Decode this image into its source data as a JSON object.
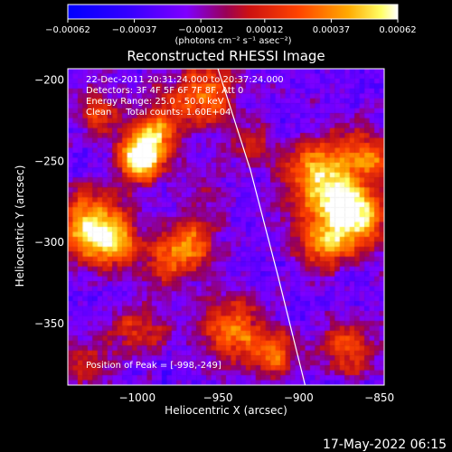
{
  "chart_data": {
    "type": "heatmap",
    "title": "Reconstructed RHESSI Image",
    "xlabel": "Heliocentric X (arcsec)",
    "ylabel": "Heliocentric Y (arcsec)",
    "xlim": [
      -1043,
      -847
    ],
    "ylim": [
      -388,
      -193
    ],
    "x_ticks": [
      -1000,
      -950,
      -900,
      -850
    ],
    "x_tick_labels": [
      "−1000",
      "−950",
      "−900",
      "−850"
    ],
    "y_ticks": [
      -200,
      -250,
      -300,
      -350
    ],
    "y_tick_labels": [
      "−200",
      "−250",
      "−300",
      "−350"
    ],
    "colorbar": {
      "min": -0.00062,
      "max": 0.00062,
      "ticks": [
        -0.00062,
        -0.00037,
        -0.00012,
        0.00012,
        0.00037,
        0.00062
      ],
      "tick_labels": [
        "−0.00062",
        "−0.00037",
        "−0.00012",
        "0.00012",
        "0.00037",
        "0.00062"
      ],
      "unit_label": "(photons cm⁻² s⁻¹ asec⁻²)",
      "colors": [
        "#0000ff",
        "#7f00ff",
        "#cc2222",
        "#ff4400",
        "#ffaa00",
        "#ffff66",
        "#ffffff"
      ]
    },
    "annotations": [
      "22-Dec-2011 20:31:24.000 to 20:37:24.000",
      "Detectors: 3F 4F 5F 6F 7F 8F, Att 0",
      "Energy Range: 25.0 - 50.0 keV",
      "Clean     Total counts: 1.60E+04"
    ],
    "peak_label": "Position of Peak = [-998,-249]",
    "peak_position": [
      -998,
      -249
    ],
    "sources": [
      {
        "x": -998,
        "y": -249,
        "intensity": 1.0,
        "radius": 10
      },
      {
        "x": -990,
        "y": -232,
        "intensity": 0.65,
        "radius": 10
      },
      {
        "x": -960,
        "y": -210,
        "intensity": 0.6,
        "radius": 14
      },
      {
        "x": -1025,
        "y": -220,
        "intensity": 0.45,
        "radius": 10
      },
      {
        "x": -1030,
        "y": -290,
        "intensity": 0.7,
        "radius": 14
      },
      {
        "x": -1015,
        "y": -300,
        "intensity": 0.55,
        "radius": 12
      },
      {
        "x": -980,
        "y": -310,
        "intensity": 0.45,
        "radius": 12
      },
      {
        "x": -965,
        "y": -300,
        "intensity": 0.5,
        "radius": 10
      },
      {
        "x": -940,
        "y": -355,
        "intensity": 0.6,
        "radius": 14
      },
      {
        "x": -915,
        "y": -370,
        "intensity": 0.5,
        "radius": 10
      },
      {
        "x": -885,
        "y": -260,
        "intensity": 0.8,
        "radius": 16
      },
      {
        "x": -865,
        "y": -285,
        "intensity": 0.9,
        "radius": 13
      },
      {
        "x": -885,
        "y": -300,
        "intensity": 0.55,
        "radius": 12
      },
      {
        "x": -855,
        "y": -245,
        "intensity": 0.55,
        "radius": 10
      },
      {
        "x": -1000,
        "y": -355,
        "intensity": 0.4,
        "radius": 12
      },
      {
        "x": -1030,
        "y": -375,
        "intensity": 0.35,
        "radius": 10
      },
      {
        "x": -870,
        "y": -365,
        "intensity": 0.45,
        "radius": 12
      },
      {
        "x": -930,
        "y": -240,
        "intensity": 0.25,
        "radius": 10
      },
      {
        "x": -960,
        "y": -270,
        "intensity": 0.2,
        "radius": 10
      }
    ],
    "limb_curve": [
      [
        -950,
        -193
      ],
      [
        -930,
        -255
      ],
      [
        -913,
        -320
      ],
      [
        -896,
        -388
      ]
    ]
  },
  "timestamp": "17-May-2022 06:15"
}
